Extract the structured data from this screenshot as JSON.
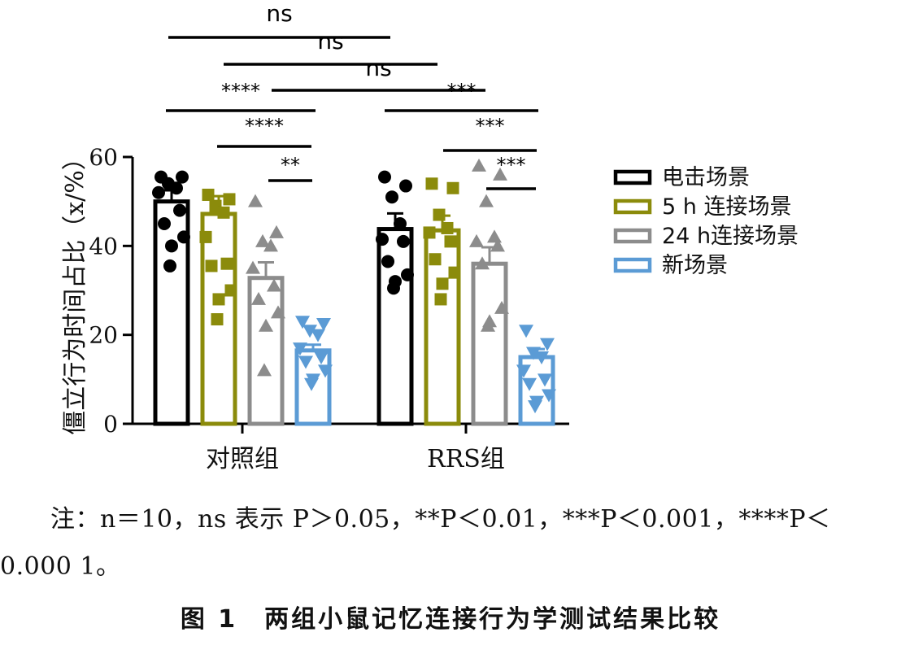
{
  "chart_data": {
    "type": "bar",
    "ylabel": "僵立行为时间占比（x/%）",
    "ylim": [
      0,
      60
    ],
    "yticks": [
      0,
      20,
      40,
      60
    ],
    "groups": [
      "对照组",
      "RRS组"
    ],
    "legend_position": "right",
    "series": [
      {
        "name": "电击场景",
        "color": "#000000",
        "marker": "circle",
        "values": [
          50,
          43.8
        ],
        "errors": [
          2.5,
          3.5
        ],
        "points": [
          [
            55.5,
            55.5,
            54,
            53,
            52,
            48,
            45,
            42,
            40,
            35.5
          ],
          [
            55.5,
            53.5,
            51,
            45,
            41.5,
            41,
            36.5,
            33.5,
            32,
            30.5
          ]
        ]
      },
      {
        "name": "5 h 连接场景",
        "color": "#8b8b0b",
        "marker": "square",
        "values": [
          47.2,
          43.5
        ],
        "errors": [
          4,
          3.3
        ],
        "points": [
          [
            51.5,
            50.5,
            49,
            47.5,
            42,
            36,
            35.5,
            30,
            28,
            23.5
          ],
          [
            54,
            53,
            47,
            44,
            43,
            41,
            37,
            34,
            31.5,
            28
          ]
        ]
      },
      {
        "name": "24 h连接场景",
        "color": "#8c8c8c",
        "marker": "triangle-up",
        "values": [
          32.8,
          36
        ],
        "errors": [
          3.5,
          3.7
        ],
        "points": [
          [
            50,
            43,
            41,
            40,
            35,
            31,
            28,
            25,
            22,
            12
          ],
          [
            58,
            56,
            50,
            42,
            41,
            40,
            36,
            26,
            23,
            22
          ]
        ]
      },
      {
        "name": "新场景",
        "color": "#5b9bd5",
        "marker": "triangle-down",
        "values": [
          16.5,
          15
        ],
        "errors": [
          1.3,
          1.8
        ],
        "points": [
          [
            23,
            22.5,
            21,
            20,
            17,
            15,
            14,
            12,
            10,
            9
          ],
          [
            21,
            18,
            16,
            15,
            12,
            10,
            9,
            6.5,
            5,
            4
          ]
        ]
      }
    ],
    "significance": [
      {
        "label": "ns",
        "from": "对照组/电击场景",
        "to": "RRS组/电击场景"
      },
      {
        "label": "ns",
        "from": "对照组/5 h 连接场景",
        "to": "RRS组/5 h 连接场景"
      },
      {
        "label": "ns",
        "from": "对照组/24 h连接场景",
        "to": "RRS组/24 h连接场景"
      },
      {
        "label": "****",
        "from": "对照组/电击场景",
        "to": "对照组/新场景"
      },
      {
        "label": "****",
        "from": "对照组/5 h 连接场景",
        "to": "对照组/新场景"
      },
      {
        "label": "**",
        "from": "对照组/24 h连接场景",
        "to": "对照组/新场景"
      },
      {
        "label": "***",
        "from": "RRS组/电击场景",
        "to": "RRS组/新场景"
      },
      {
        "label": "***",
        "from": "RRS组/5 h 连接场景",
        "to": "RRS组/新场景"
      },
      {
        "label": "***",
        "from": "RRS组/24 h连接场景",
        "to": "RRS组/新场景"
      }
    ]
  },
  "note": "注：n＝10，ns 表示 P＞0.05，**P＜0.01，***P＜0.001，****P＜0.000 1。",
  "caption": "图 1　两组小鼠记忆连接行为学测试结果比较"
}
